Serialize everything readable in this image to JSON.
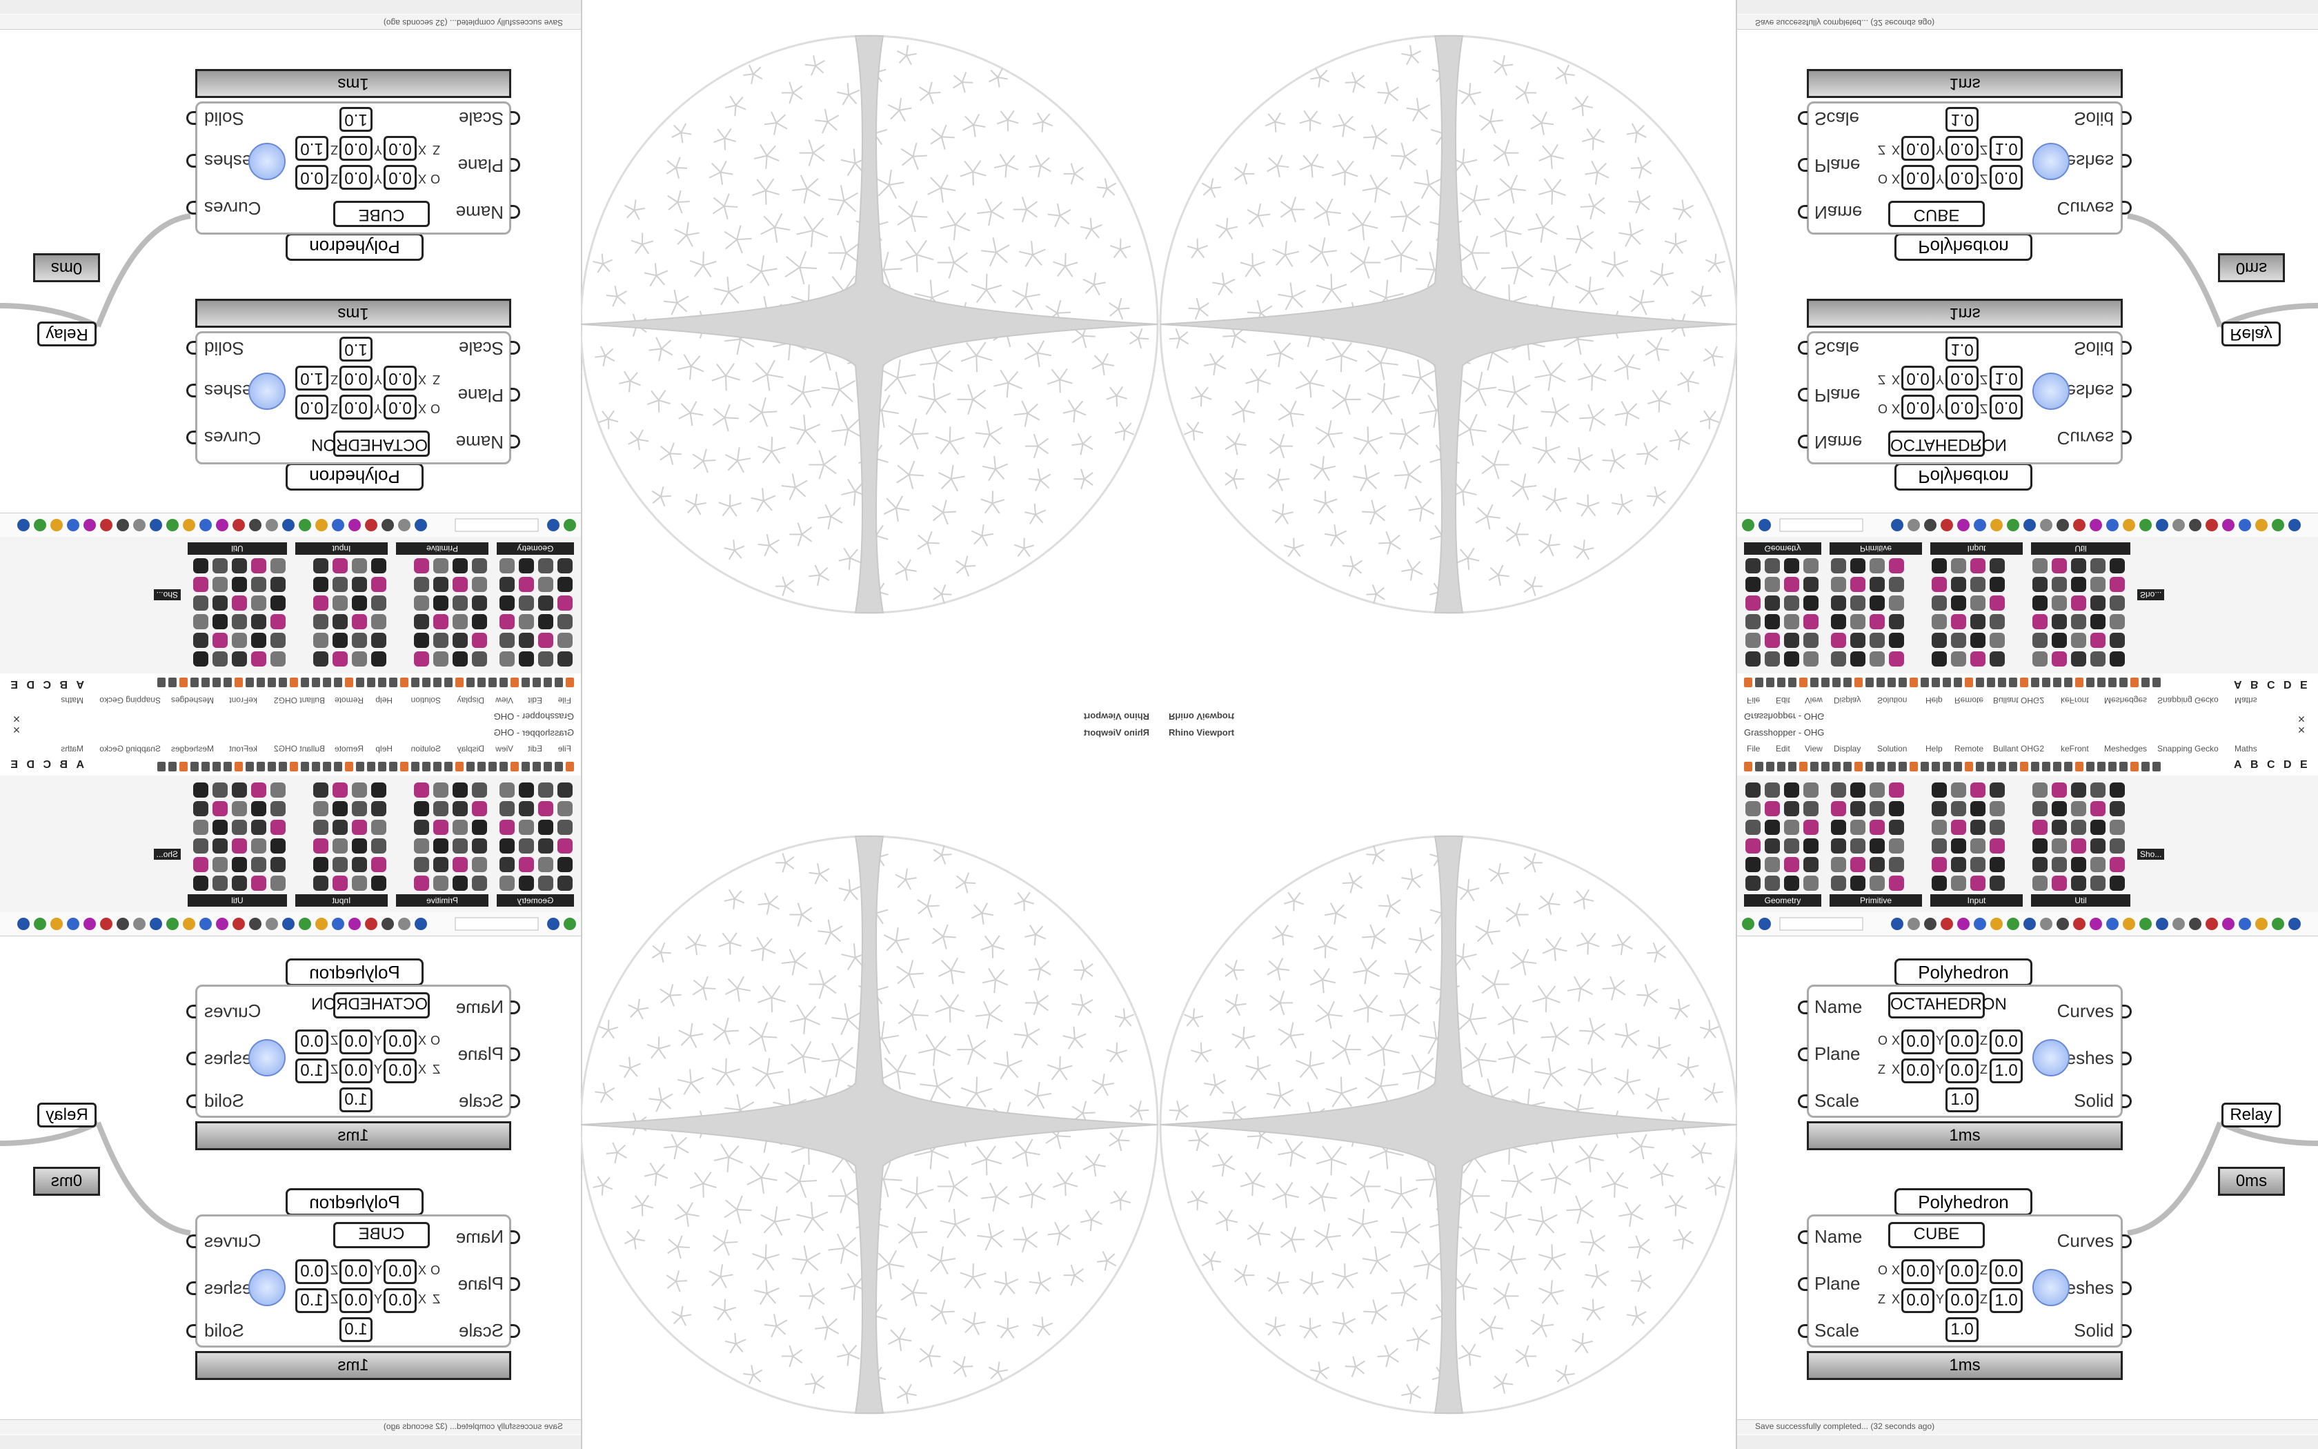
{
  "viewport": {
    "title": "Rhino Viewport"
  },
  "window": {
    "title": "Grasshopper - OHG",
    "menu": [
      "File",
      "Edit",
      "View",
      "Display",
      "Solution",
      "Help",
      "Remote",
      "Bullant OHG2",
      "keFront",
      "Meshedges",
      "Snapping Gecko",
      "Maths"
    ],
    "tab_letters": [
      "A",
      "B",
      "C",
      "D",
      "E"
    ]
  },
  "palette": {
    "groups": [
      "Geometry",
      "Primitive",
      "Input",
      "Util"
    ],
    "extra": "Sho..."
  },
  "components": [
    {
      "label": "Polyhedron",
      "inputs": [
        "Name",
        "Plane",
        "Scale"
      ],
      "outputs": [
        "Curves",
        "Meshes",
        "Solid"
      ],
      "name_value": "OCTAHEDRON",
      "plane_rows": [
        "O",
        "Z"
      ],
      "axes": [
        "X",
        "Y",
        "Z"
      ],
      "origin": [
        "0.0",
        "0.0",
        "0.0"
      ],
      "zaxis": [
        "0.0",
        "0.0",
        "1.0"
      ],
      "scale": "1.0",
      "time": "1ms"
    },
    {
      "label": "Polyhedron",
      "inputs": [
        "Name",
        "Plane",
        "Scale"
      ],
      "outputs": [
        "Curves",
        "Meshes",
        "Solid"
      ],
      "name_value": "CUBE",
      "plane_rows": [
        "O",
        "Z"
      ],
      "axes": [
        "X",
        "Y",
        "Z"
      ],
      "origin": [
        "0.0",
        "0.0",
        "0.0"
      ],
      "zaxis": [
        "0.0",
        "0.0",
        "1.0"
      ],
      "scale": "1.0",
      "time": "1ms"
    }
  ],
  "relay": {
    "label": "Relay",
    "time": "0ms"
  },
  "status": "Save successfully completed... (32 seconds ago)"
}
